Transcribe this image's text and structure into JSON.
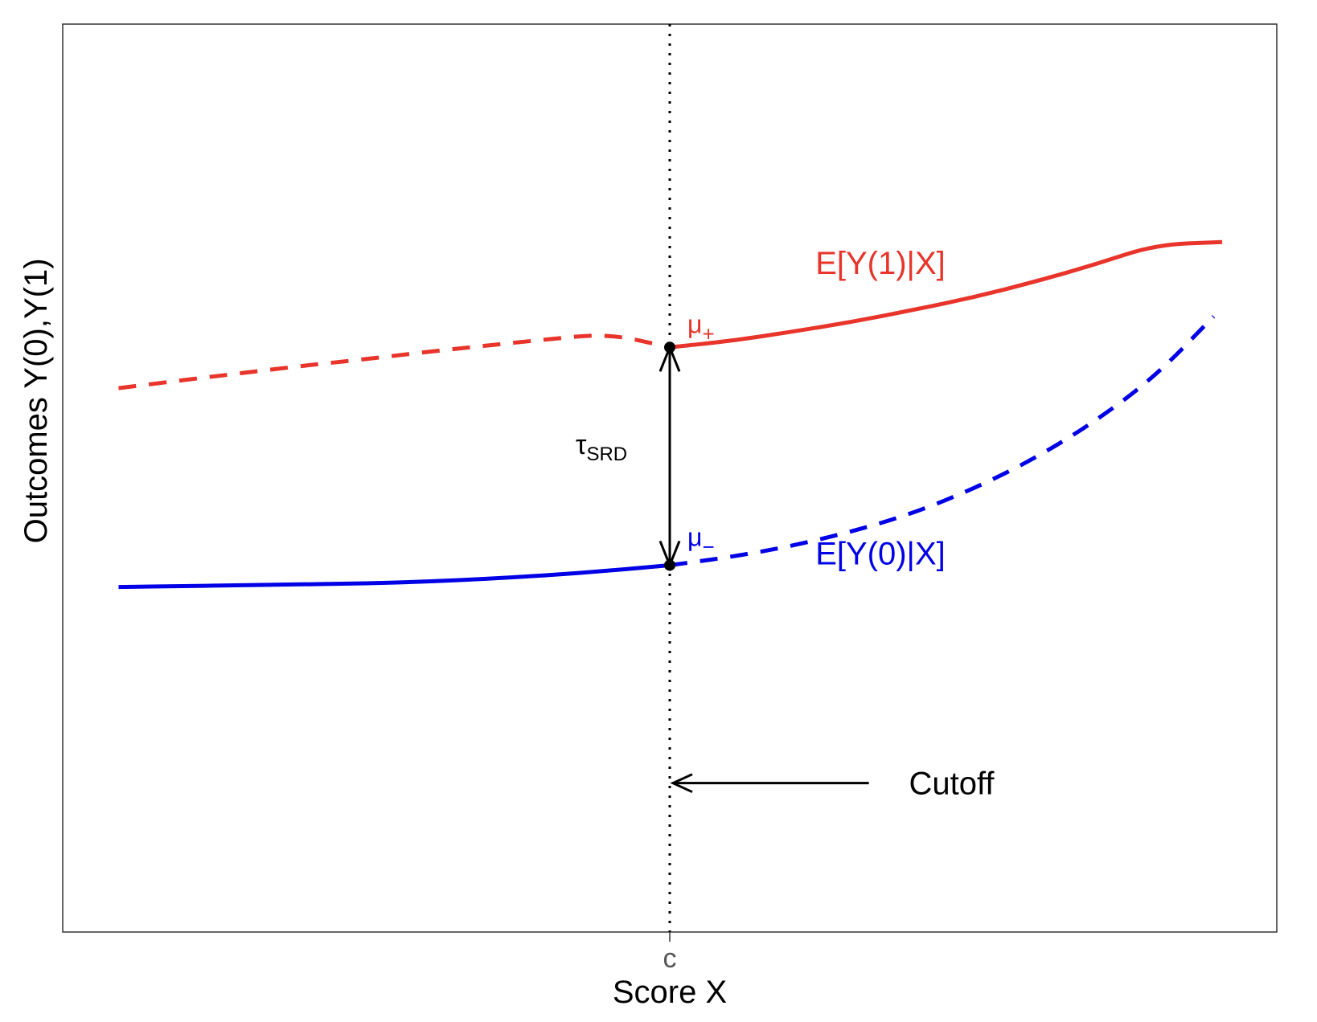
{
  "chart_data": {
    "type": "line",
    "title": "",
    "xlabel": "Score X",
    "ylabel": "Outcomes Y(0),Y(1)",
    "x_ticks": [
      {
        "value": 0.5,
        "label": "c"
      }
    ],
    "xlim": [
      0,
      1
    ],
    "ylim": [
      0,
      1
    ],
    "grid": false,
    "cutoff": 0.5,
    "series": [
      {
        "name": "E[Y(1)|X]",
        "color": "#e8342a",
        "x": [
          0.046,
          0.1,
          0.15,
          0.2,
          0.25,
          0.3,
          0.35,
          0.4,
          0.45,
          0.5,
          0.55,
          0.6,
          0.65,
          0.7,
          0.75,
          0.8,
          0.85,
          0.9,
          0.955
        ],
        "y": [
          0.599,
          0.608,
          0.616,
          0.624,
          0.631,
          0.639,
          0.646,
          0.653,
          0.659,
          0.644,
          0.651,
          0.661,
          0.672,
          0.685,
          0.699,
          0.716,
          0.735,
          0.757,
          0.76
        ],
        "segments": [
          {
            "style": "dashed",
            "x_range": [
              0.046,
              0.5
            ]
          },
          {
            "style": "solid",
            "x_range": [
              0.5,
              0.955
            ]
          }
        ]
      },
      {
        "name": "E[Y(0)|X]",
        "color": "#0000e6",
        "x": [
          0.046,
          0.1,
          0.15,
          0.2,
          0.25,
          0.3,
          0.35,
          0.4,
          0.45,
          0.5,
          0.55,
          0.6,
          0.65,
          0.7,
          0.75,
          0.8,
          0.85,
          0.9,
          0.948
        ],
        "y": [
          0.38,
          0.381,
          0.382,
          0.383,
          0.384,
          0.386,
          0.389,
          0.393,
          0.398,
          0.404,
          0.413,
          0.425,
          0.441,
          0.461,
          0.488,
          0.521,
          0.562,
          0.612,
          0.678
        ],
        "segments": [
          {
            "style": "solid",
            "x_range": [
              0.046,
              0.5
            ]
          },
          {
            "style": "dashed",
            "x_range": [
              0.5,
              0.948
            ]
          }
        ]
      }
    ],
    "points": [
      {
        "label": "μ+",
        "x": 0.5,
        "y": 0.644,
        "color": "#e8342a"
      },
      {
        "label": "μ−",
        "x": 0.5,
        "y": 0.404,
        "color": "#0000e6"
      }
    ],
    "annotations": {
      "effect_label": "τ",
      "effect_subscript": "SRD",
      "cutoff_label": "Cutoff",
      "mu_plus": {
        "symbol": "μ",
        "sub": "+"
      },
      "mu_minus": {
        "symbol": "μ",
        "sub": "−"
      }
    }
  }
}
